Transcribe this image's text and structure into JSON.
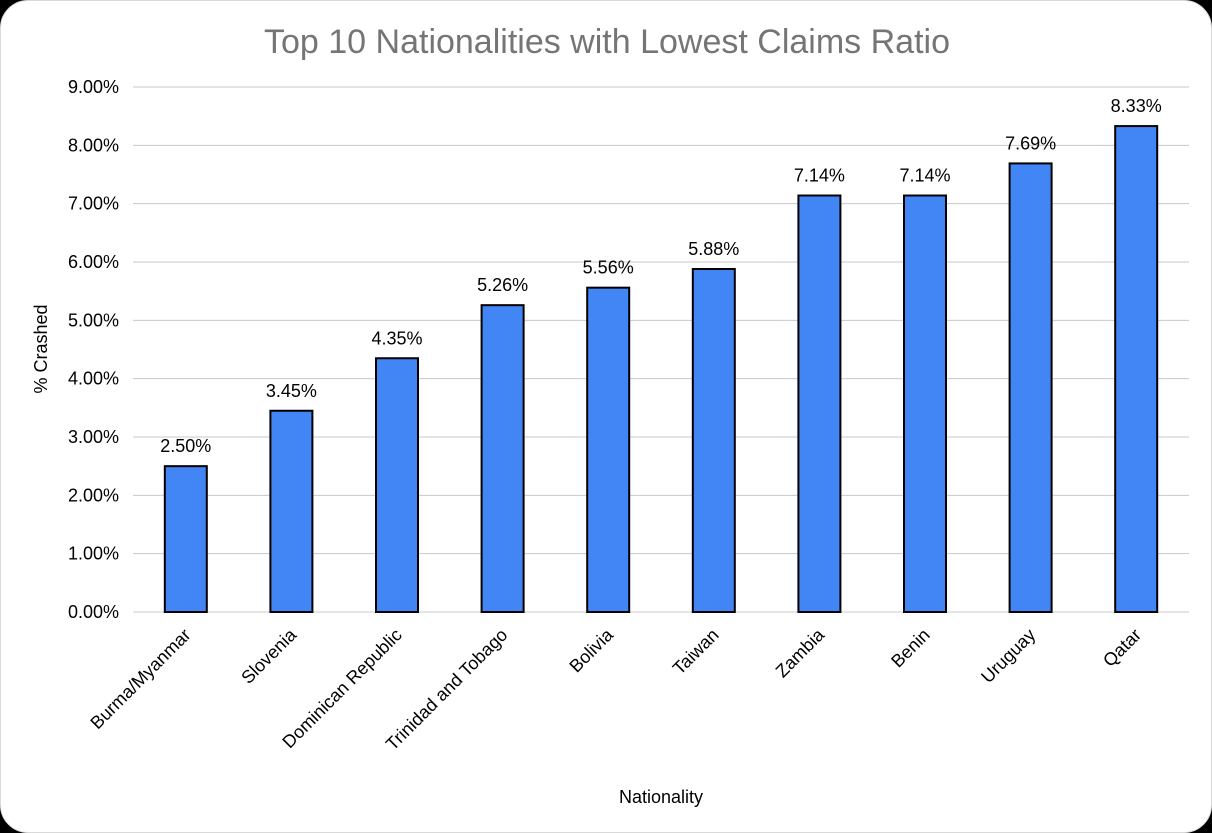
{
  "chart_data": {
    "type": "bar",
    "title": "Top 10 Nationalities with Lowest Claims Ratio",
    "xlabel": "Nationality",
    "ylabel": "% Crashed",
    "categories": [
      "Burma/Myanmar",
      "Slovenia",
      "Dominican Republic",
      "Trinidad and Tobago",
      "Bolivia",
      "Taiwan",
      "Zambia",
      "Benin",
      "Uruguay",
      "Qatar"
    ],
    "values": [
      2.5,
      3.45,
      4.35,
      5.26,
      5.56,
      5.88,
      7.14,
      7.14,
      7.69,
      8.33
    ],
    "data_labels": [
      "2.50%",
      "3.45%",
      "4.35%",
      "5.26%",
      "5.56%",
      "5.88%",
      "7.14%",
      "7.14%",
      "7.69%",
      "8.33%"
    ],
    "ylim": [
      0,
      9
    ],
    "y_ticks": [
      0,
      1,
      2,
      3,
      4,
      5,
      6,
      7,
      8,
      9
    ],
    "y_tick_labels": [
      "0.00%",
      "1.00%",
      "2.00%",
      "3.00%",
      "4.00%",
      "5.00%",
      "6.00%",
      "7.00%",
      "8.00%",
      "9.00%"
    ],
    "grid": true,
    "legend": "none",
    "bar_color": "#4285f4",
    "bar_outline_color": "#000000",
    "gridline_color": "#c8c8c8"
  }
}
